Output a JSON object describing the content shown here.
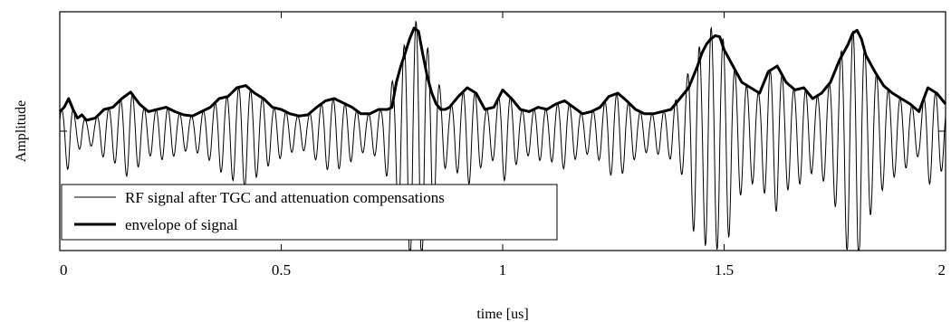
{
  "chart_data": {
    "type": "line",
    "title": "",
    "xlabel": "time [us]",
    "ylabel": "Amplitude",
    "xlim": [
      0,
      2
    ],
    "ylim": [
      -1.0,
      1.0
    ],
    "x_ticks": [
      {
        "value": 0,
        "label": "0"
      },
      {
        "value": 0.5,
        "label": "0.5"
      },
      {
        "value": 1,
        "label": "1"
      },
      {
        "value": 1.5,
        "label": "1.5"
      },
      {
        "value": 2,
        "label": "2"
      }
    ],
    "y_ticks_labeled": false,
    "grid": false,
    "legend_position": "bottom-left",
    "series": [
      {
        "name": "RF signal after TGC and attenuation compensations",
        "style": "thin",
        "color": "#000000",
        "envelope_ref": "envelope of signal",
        "carrier_mhz": 37.5,
        "peak_amplitudes": [
          [
            0.75,
            0.22
          ],
          [
            0.76,
            0.45
          ],
          [
            0.78,
            0.72
          ],
          [
            0.795,
            0.92
          ],
          [
            0.81,
            0.95
          ],
          [
            0.83,
            0.7
          ],
          [
            0.85,
            0.35
          ],
          [
            0.87,
            0.2
          ],
          [
            1.4,
            0.28
          ],
          [
            1.44,
            0.72
          ],
          [
            1.47,
            0.87
          ],
          [
            1.5,
            0.78
          ],
          [
            1.53,
            0.45
          ],
          [
            1.56,
            0.3
          ],
          [
            1.74,
            0.4
          ],
          [
            1.78,
            0.82
          ],
          [
            1.8,
            0.9
          ],
          [
            1.83,
            0.55
          ],
          [
            1.86,
            0.3
          ]
        ]
      },
      {
        "name": "envelope of signal",
        "style": "bold",
        "color": "#000000",
        "x": [
          0,
          0.01,
          0.02,
          0.03,
          0.04,
          0.05,
          0.06,
          0.08,
          0.1,
          0.12,
          0.14,
          0.16,
          0.18,
          0.2,
          0.22,
          0.24,
          0.26,
          0.28,
          0.3,
          0.32,
          0.34,
          0.36,
          0.38,
          0.4,
          0.42,
          0.44,
          0.46,
          0.48,
          0.5,
          0.52,
          0.54,
          0.56,
          0.58,
          0.6,
          0.62,
          0.64,
          0.66,
          0.68,
          0.7,
          0.72,
          0.74,
          0.75,
          0.76,
          0.77,
          0.78,
          0.79,
          0.8,
          0.81,
          0.82,
          0.83,
          0.84,
          0.85,
          0.86,
          0.87,
          0.88,
          0.9,
          0.92,
          0.94,
          0.96,
          0.98,
          1.0,
          1.02,
          1.04,
          1.06,
          1.08,
          1.1,
          1.12,
          1.14,
          1.16,
          1.18,
          1.2,
          1.22,
          1.24,
          1.26,
          1.28,
          1.3,
          1.32,
          1.34,
          1.36,
          1.38,
          1.4,
          1.42,
          1.44,
          1.45,
          1.46,
          1.47,
          1.48,
          1.49,
          1.5,
          1.52,
          1.54,
          1.56,
          1.58,
          1.6,
          1.62,
          1.64,
          1.66,
          1.68,
          1.7,
          1.72,
          1.74,
          1.76,
          1.78,
          1.79,
          1.8,
          1.81,
          1.82,
          1.84,
          1.86,
          1.88,
          1.9,
          1.92,
          1.94,
          1.96,
          1.98,
          2.0
        ],
        "y": [
          0.18,
          0.22,
          0.3,
          0.2,
          0.12,
          0.15,
          0.1,
          0.12,
          0.2,
          0.22,
          0.3,
          0.36,
          0.25,
          0.18,
          0.2,
          0.22,
          0.18,
          0.15,
          0.14,
          0.18,
          0.22,
          0.3,
          0.32,
          0.4,
          0.42,
          0.35,
          0.3,
          0.22,
          0.2,
          0.16,
          0.14,
          0.15,
          0.22,
          0.28,
          0.3,
          0.26,
          0.22,
          0.16,
          0.16,
          0.2,
          0.2,
          0.22,
          0.45,
          0.6,
          0.72,
          0.85,
          0.95,
          0.92,
          0.7,
          0.5,
          0.35,
          0.25,
          0.2,
          0.2,
          0.22,
          0.32,
          0.4,
          0.35,
          0.2,
          0.22,
          0.38,
          0.3,
          0.2,
          0.18,
          0.22,
          0.2,
          0.25,
          0.28,
          0.22,
          0.16,
          0.18,
          0.22,
          0.32,
          0.35,
          0.28,
          0.2,
          0.16,
          0.16,
          0.18,
          0.2,
          0.3,
          0.4,
          0.6,
          0.72,
          0.8,
          0.85,
          0.88,
          0.87,
          0.75,
          0.6,
          0.45,
          0.4,
          0.35,
          0.55,
          0.6,
          0.45,
          0.38,
          0.4,
          0.3,
          0.35,
          0.45,
          0.65,
          0.8,
          0.9,
          0.93,
          0.85,
          0.7,
          0.55,
          0.42,
          0.35,
          0.3,
          0.25,
          0.18,
          0.4,
          0.35,
          0.25
        ]
      }
    ]
  },
  "legend": {
    "items": [
      {
        "label": "RF signal after TGC and attenuation compensations",
        "style": "thin"
      },
      {
        "label": "envelope of signal",
        "style": "bold"
      }
    ]
  }
}
